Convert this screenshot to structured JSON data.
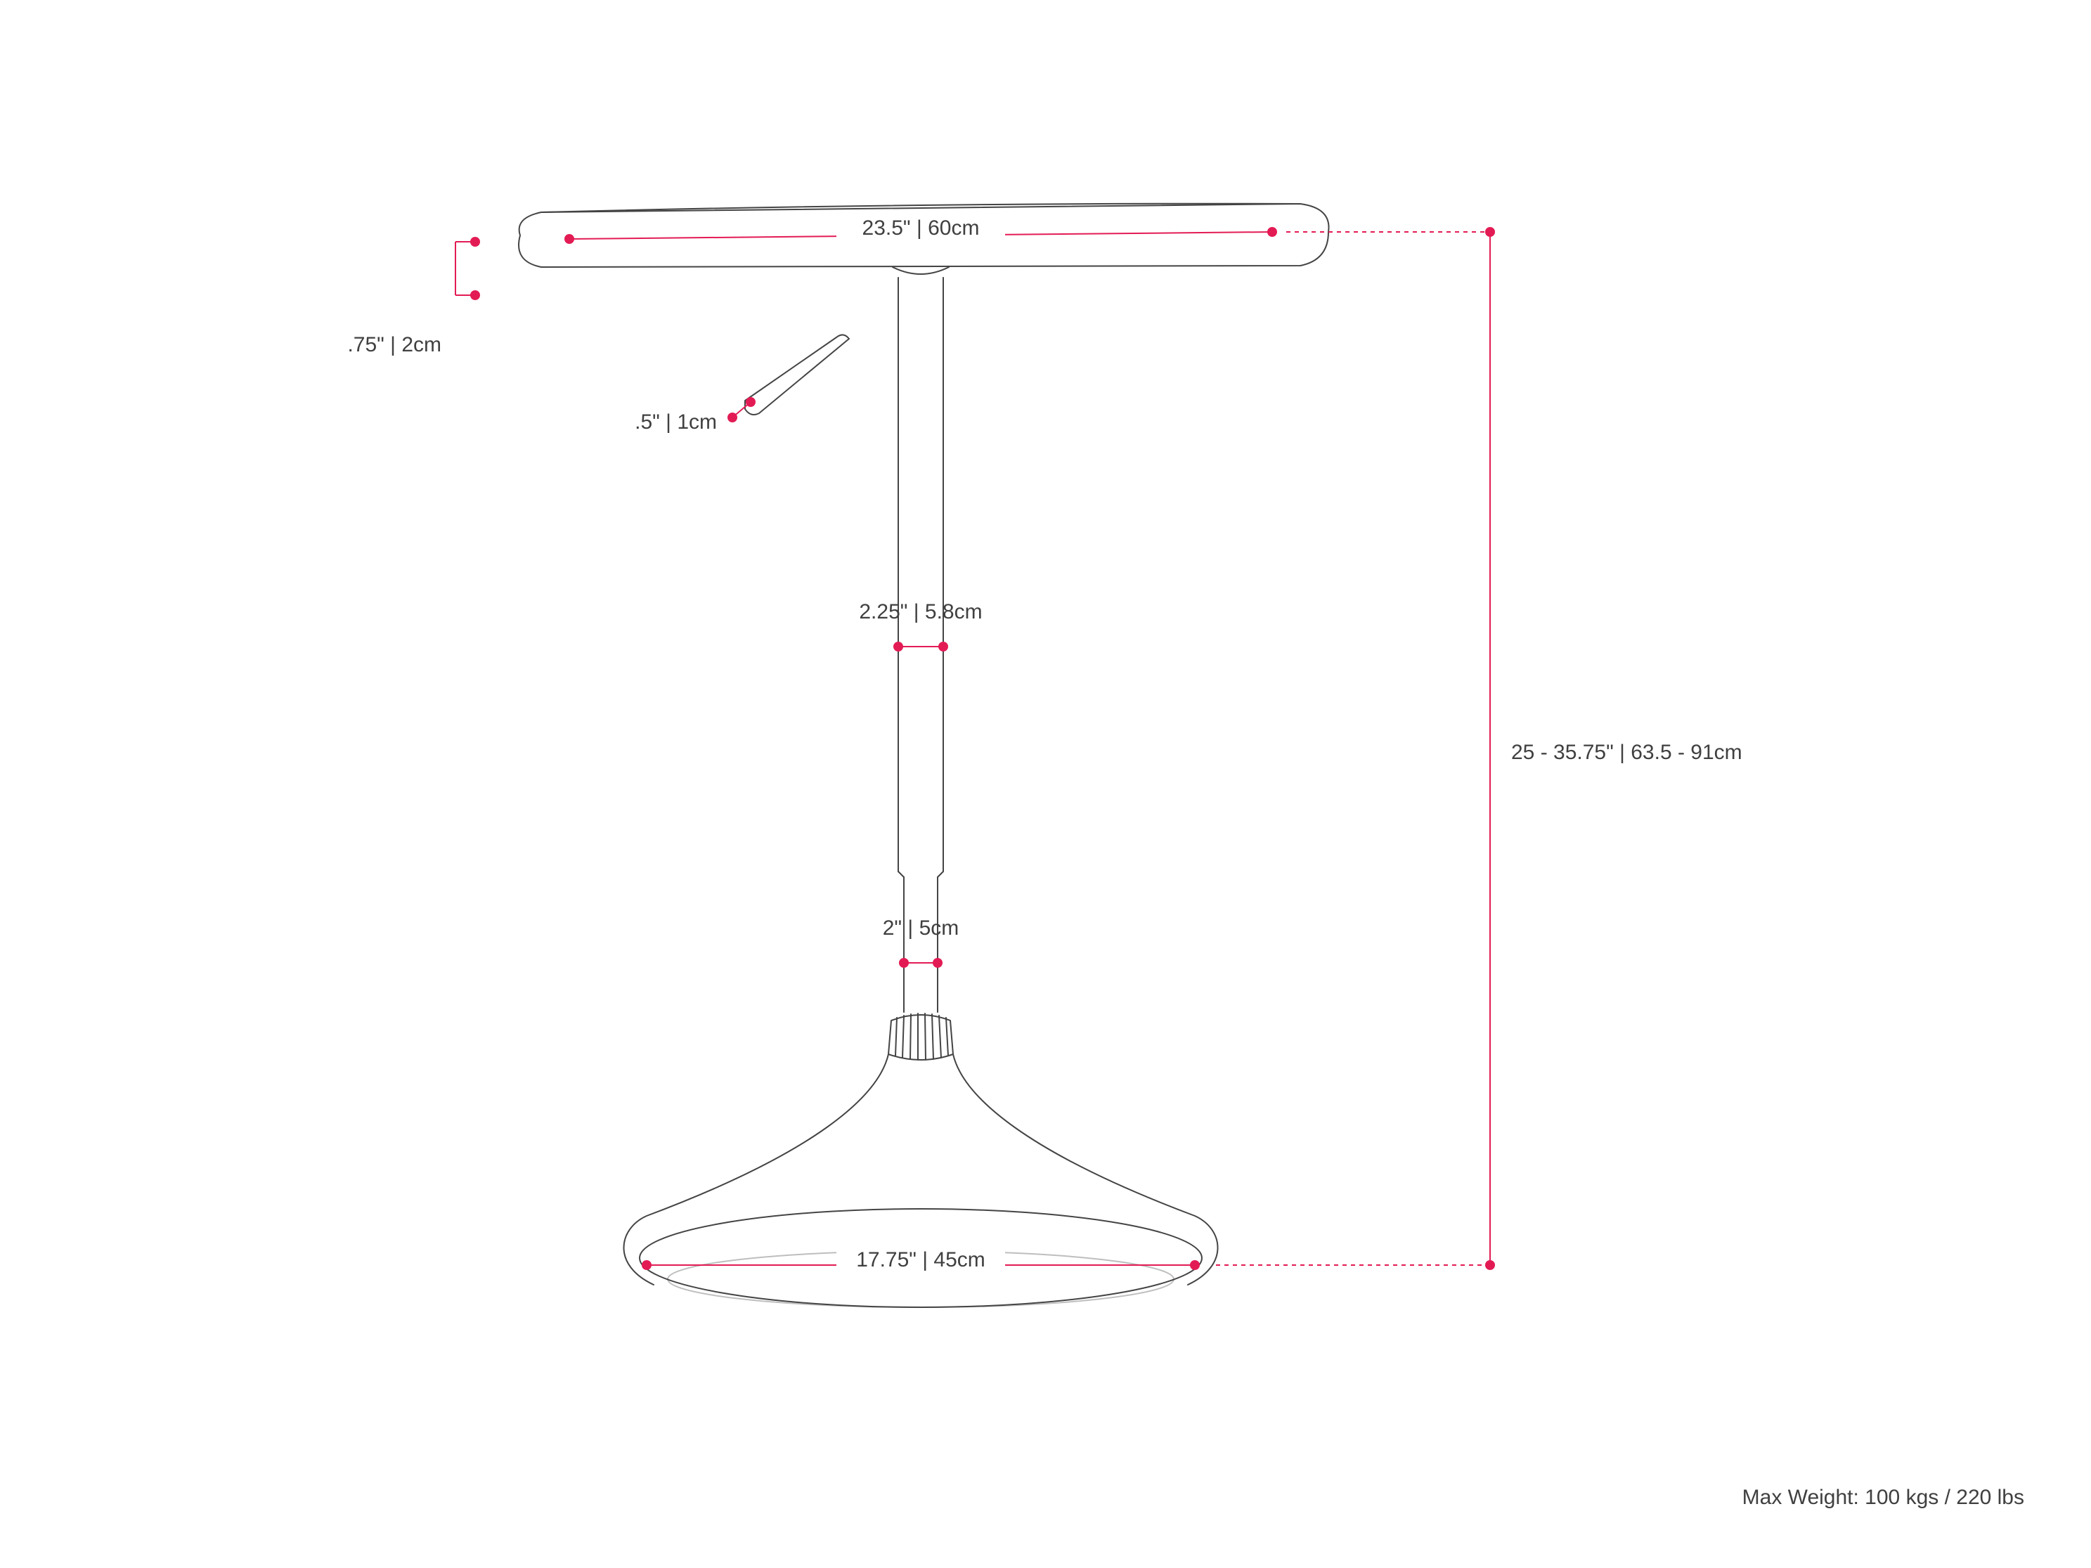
{
  "diagram": {
    "type": "dimensioned-line-drawing",
    "view": "side",
    "subject": "adjustable-height pedestal table",
    "background_color": "#ffffff",
    "outline_color": "#444444",
    "text_color": "#404040",
    "accent_color": "#e31b54",
    "outline_stroke_width": 2,
    "dim_stroke_width": 2,
    "dot_radius": 7,
    "font_family": "Helvetica, Arial, sans-serif",
    "label_fontsize": 30,
    "footer_fontsize": 30,
    "dimensions": {
      "top_width": {
        "in": "23.5\"",
        "cm": "60cm"
      },
      "top_thickness": {
        "in": ".75\"",
        "cm": "2cm"
      },
      "lever_width": {
        "in": ".5\"",
        "cm": "1cm"
      },
      "upper_post": {
        "in": "2.25\"",
        "cm": "5.8cm"
      },
      "lower_post": {
        "in": "2\"",
        "cm": "5cm"
      },
      "base_diameter": {
        "in": "17.75\"",
        "cm": "45cm"
      },
      "height_range": {
        "in": "25 - 35.75\"",
        "cm": "63.5 - 91cm"
      }
    },
    "footer": "Max Weight: 100 kgs / 220 lbs"
  }
}
